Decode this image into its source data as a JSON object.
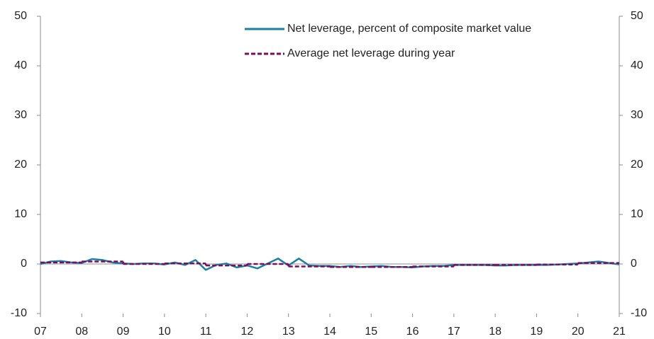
{
  "chart_data": {
    "type": "line",
    "series": [
      {
        "name": "Net leverage, percent of composite market value",
        "color": "#1b7fa3",
        "style": "solid",
        "x": [
          2007,
          2007.25,
          2007.5,
          2007.75,
          2008,
          2008.25,
          2008.5,
          2008.75,
          2009,
          2009.25,
          2009.5,
          2009.75,
          2010,
          2010.25,
          2010.5,
          2010.75,
          2011,
          2011.25,
          2011.5,
          2011.75,
          2012,
          2012.25,
          2012.5,
          2012.75,
          2013,
          2013.25,
          2013.5,
          2013.75,
          2014,
          2014.25,
          2014.5,
          2014.75,
          2015,
          2015.25,
          2015.5,
          2015.75,
          2016,
          2016.25,
          2016.5,
          2016.75,
          2017,
          2017.25,
          2017.5,
          2017.75,
          2018,
          2018.25,
          2018.5,
          2018.75,
          2019,
          2019.25,
          2019.5,
          2019.75,
          2020,
          2020.25,
          2020.5,
          2020.75,
          2021
        ],
        "values": [
          0,
          0.5,
          0.6,
          0.3,
          0.2,
          1.0,
          0.8,
          0.3,
          0.1,
          0,
          0.1,
          0.1,
          -0.1,
          0.3,
          -0.2,
          0.8,
          -1.2,
          -0.2,
          0.1,
          -0.7,
          -0.3,
          -0.9,
          0.1,
          1.1,
          -0.3,
          1.1,
          -0.3,
          -0.4,
          -0.4,
          -0.6,
          -0.4,
          -0.6,
          -0.5,
          -0.4,
          -0.6,
          -0.6,
          -0.7,
          -0.5,
          -0.4,
          -0.4,
          -0.2,
          -0.2,
          -0.2,
          -0.2,
          -0.3,
          -0.3,
          -0.2,
          -0.2,
          -0.2,
          -0.2,
          -0.1,
          0,
          0.1,
          0.3,
          0.5,
          0.2,
          -0.1
        ]
      },
      {
        "name": "Average net leverage during year",
        "color": "#7a0d5f",
        "style": "dashed",
        "step": true,
        "x": [
          2007,
          2008,
          2009,
          2010,
          2011,
          2012,
          2013,
          2014,
          2015,
          2016,
          2017,
          2018,
          2019,
          2020
        ],
        "values": [
          0.3,
          0.5,
          0.0,
          0.1,
          -0.3,
          0.0,
          -0.5,
          -0.6,
          -0.6,
          -0.5,
          -0.2,
          -0.2,
          -0.1,
          0.2
        ]
      }
    ],
    "xlim": [
      2007,
      2021
    ],
    "xticks": [
      {
        "value": 2007,
        "label": "07"
      },
      {
        "value": 2008,
        "label": "08"
      },
      {
        "value": 2009,
        "label": "09"
      },
      {
        "value": 2010,
        "label": "10"
      },
      {
        "value": 2011,
        "label": "11"
      },
      {
        "value": 2012,
        "label": "12"
      },
      {
        "value": 2013,
        "label": "13"
      },
      {
        "value": 2014,
        "label": "14"
      },
      {
        "value": 2015,
        "label": "15"
      },
      {
        "value": 2016,
        "label": "16"
      },
      {
        "value": 2017,
        "label": "17"
      },
      {
        "value": 2018,
        "label": "18"
      },
      {
        "value": 2019,
        "label": "19"
      },
      {
        "value": 2020,
        "label": "20"
      },
      {
        "value": 2021,
        "label": "21"
      }
    ],
    "ylim": [
      -10,
      50
    ],
    "yticks": [
      -10,
      0,
      10,
      20,
      30,
      40,
      50
    ],
    "y2lim": [
      -10,
      50
    ],
    "y2ticks": [
      -10,
      0,
      10,
      20,
      30,
      40,
      50
    ],
    "grid": false,
    "legend": "top"
  }
}
